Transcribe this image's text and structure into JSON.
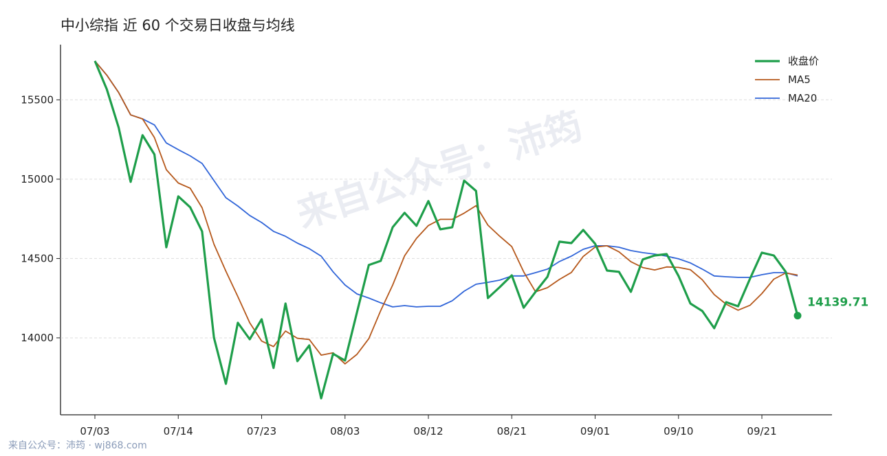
{
  "chart_data": {
    "type": "line",
    "title": "中小综指 近 60 个交易日收盘与均线",
    "watermark": "来自公众号：沛筠",
    "footer": "来自公众号：沛筠 · wj868.com",
    "categories": [
      "07/03",
      null,
      null,
      null,
      null,
      null,
      null,
      "07/14",
      null,
      null,
      null,
      null,
      null,
      null,
      "07/23",
      null,
      null,
      null,
      null,
      null,
      null,
      "08/03",
      null,
      null,
      null,
      null,
      null,
      null,
      "08/12",
      null,
      null,
      null,
      null,
      null,
      null,
      "08/21",
      null,
      null,
      null,
      null,
      null,
      null,
      "09/01",
      null,
      null,
      null,
      null,
      null,
      null,
      "09/10",
      null,
      null,
      null,
      null,
      null,
      null,
      "09/21",
      null,
      null,
      null
    ],
    "series": [
      {
        "name": "收盘价",
        "color": "#1e9e4a",
        "values": [
          15745,
          15567,
          15325,
          14983,
          15277,
          15156,
          14571,
          14892,
          14823,
          14671,
          14000,
          13710,
          14095,
          13991,
          14117,
          13810,
          14216,
          13853,
          13952,
          13619,
          13900,
          13857,
          14160,
          14459,
          14485,
          14697,
          14788,
          14706,
          14862,
          14684,
          14697,
          14991,
          14926,
          14251,
          14320,
          14394,
          14190,
          14290,
          14385,
          14606,
          14597,
          14680,
          14593,
          14424,
          14416,
          14290,
          14494,
          14519,
          14528,
          14390,
          14216,
          14169,
          14061,
          14225,
          14199,
          14372,
          14537,
          14519,
          14416,
          14139.71
        ]
      },
      {
        "name": "MA5",
        "color": "#b5571a",
        "values": [
          15745,
          15656,
          15546,
          15405,
          15380,
          15262,
          15060,
          14976,
          14943,
          14820,
          14590,
          14420,
          14260,
          14095,
          13980,
          13945,
          14043,
          13997,
          13990,
          13891,
          13906,
          13836,
          13896,
          13995,
          14172,
          14333,
          14517,
          14627,
          14708,
          14747,
          14747,
          14786,
          14833,
          14710,
          14640,
          14575,
          14416,
          14290,
          14316,
          14368,
          14412,
          14513,
          14572,
          14580,
          14542,
          14480,
          14443,
          14428,
          14447,
          14444,
          14429,
          14366,
          14273,
          14212,
          14174,
          14205,
          14279,
          14370,
          14409,
          14396
        ]
      },
      {
        "name": "MA20",
        "color": "#2f64d8",
        "values": [
          15745,
          15656,
          15546,
          15405,
          15380,
          15342,
          15228,
          15186,
          15147,
          15099,
          14991,
          14883,
          14831,
          14771,
          14727,
          14671,
          14640,
          14597,
          14562,
          14515,
          14416,
          14333,
          14277,
          14251,
          14221,
          14195,
          14203,
          14195,
          14199,
          14199,
          14234,
          14294,
          14338,
          14350,
          14364,
          14390,
          14390,
          14411,
          14433,
          14481,
          14515,
          14558,
          14580,
          14580,
          14571,
          14550,
          14537,
          14528,
          14515,
          14498,
          14472,
          14433,
          14390,
          14385,
          14381,
          14381,
          14398,
          14411,
          14411,
          14390
        ]
      }
    ],
    "ylim": [
      13515,
      15848
    ],
    "yticks": [
      14000,
      14500,
      15000,
      15500
    ],
    "grid": true,
    "legend": "upper right"
  }
}
